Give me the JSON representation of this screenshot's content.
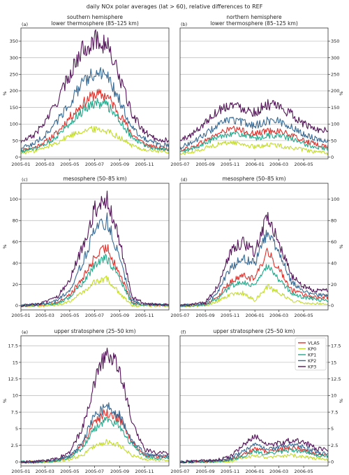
{
  "figure": {
    "suptitle": "daily NOx polar averages (lat > 60), relative differences to REF"
  },
  "series_styles": [
    {
      "name": "VLAS",
      "color": "#e0302b"
    },
    {
      "name": "KP0",
      "color": "#c4dc2c"
    },
    {
      "name": "KP1",
      "color": "#25a98c"
    },
    {
      "name": "KP2",
      "color": "#396a93"
    },
    {
      "name": "KP3",
      "color": "#541559"
    }
  ],
  "chart_data": [
    {
      "type": "line",
      "letter": "(a)",
      "title": [
        "southern hemisphere",
        "lower thermosphere (85–125 km)"
      ],
      "ylabel": "%",
      "xlim": [
        "2005-01-01",
        "2005-12-31"
      ],
      "ylim": [
        -5,
        390
      ],
      "yticks": [
        0,
        50,
        100,
        150,
        200,
        250,
        300,
        350
      ],
      "xticks": [
        "2005-01",
        "2005-03",
        "2005-05",
        "2005-07",
        "2005-09",
        "2005-11"
      ],
      "grid": true,
      "legend": false,
      "x": [
        "2005-01-01",
        "2005-02-01",
        "2005-03-01",
        "2005-04-01",
        "2005-05-01",
        "2005-06-01",
        "2005-07-01",
        "2005-08-01",
        "2005-09-01",
        "2005-10-01",
        "2005-11-01",
        "2005-12-01",
        "2005-12-31"
      ],
      "series": [
        {
          "name": "VLAS",
          "values": [
            20,
            28,
            45,
            75,
            120,
            160,
            190,
            185,
            130,
            70,
            40,
            28,
            25
          ]
        },
        {
          "name": "KP0",
          "values": [
            12,
            18,
            28,
            45,
            65,
            80,
            85,
            80,
            60,
            35,
            22,
            18,
            15
          ]
        },
        {
          "name": "KP1",
          "values": [
            18,
            25,
            38,
            65,
            105,
            140,
            165,
            160,
            112,
            60,
            35,
            25,
            22
          ]
        },
        {
          "name": "KP2",
          "values": [
            28,
            40,
            65,
            110,
            165,
            220,
            255,
            245,
            170,
            90,
            55,
            40,
            35
          ]
        },
        {
          "name": "KP3",
          "values": [
            45,
            65,
            105,
            170,
            250,
            325,
            355,
            340,
            240,
            130,
            75,
            55,
            50
          ]
        }
      ]
    },
    {
      "type": "line",
      "letter": "(b)",
      "title": [
        "northern hemisphere",
        "lower thermosphere (85–125 km)"
      ],
      "ylabel": "%",
      "xlim": [
        "2005-07-01",
        "2006-06-30"
      ],
      "ylim": [
        -5,
        390
      ],
      "yticks": [
        0,
        50,
        100,
        150,
        200,
        250,
        300,
        350
      ],
      "xticks": [
        "2005-07",
        "2005-09",
        "2005-11",
        "2006-01",
        "2006-03",
        "2006-05"
      ],
      "grid": true,
      "legend": false,
      "x": [
        "2005-07-01",
        "2005-08-01",
        "2005-09-01",
        "2005-10-01",
        "2005-11-01",
        "2005-12-01",
        "2006-01-01",
        "2006-02-01",
        "2006-03-01",
        "2006-04-01",
        "2006-05-01",
        "2006-06-01",
        "2006-06-30"
      ],
      "series": [
        {
          "name": "VLAS",
          "values": [
            22,
            30,
            50,
            70,
            85,
            80,
            70,
            80,
            80,
            65,
            50,
            38,
            32
          ]
        },
        {
          "name": "KP0",
          "values": [
            10,
            15,
            28,
            38,
            45,
            40,
            30,
            38,
            35,
            28,
            22,
            15,
            12
          ]
        },
        {
          "name": "KP1",
          "values": [
            15,
            25,
            42,
            60,
            72,
            68,
            55,
            65,
            65,
            55,
            40,
            30,
            25
          ]
        },
        {
          "name": "KP2",
          "values": [
            30,
            45,
            70,
            95,
            115,
            105,
            95,
            110,
            110,
            90,
            70,
            55,
            50
          ]
        },
        {
          "name": "KP3",
          "values": [
            50,
            70,
            105,
            140,
            160,
            150,
            135,
            160,
            150,
            130,
            100,
            85,
            80
          ]
        }
      ]
    },
    {
      "type": "line",
      "letter": "(c)",
      "title": [
        "mesosphere (50–85 km)"
      ],
      "ylabel": "%",
      "xlim": [
        "2005-01-01",
        "2005-12-31"
      ],
      "ylim": [
        -4,
        115
      ],
      "yticks": [
        0,
        20,
        40,
        60,
        80,
        100
      ],
      "xticks": [
        "2005-01",
        "2005-03",
        "2005-05",
        "2005-07",
        "2005-09",
        "2005-11"
      ],
      "grid": true,
      "legend": false,
      "x": [
        "2005-01-01",
        "2005-02-01",
        "2005-03-01",
        "2005-04-01",
        "2005-05-01",
        "2005-06-01",
        "2005-07-01",
        "2005-08-01",
        "2005-09-01",
        "2005-10-01",
        "2005-11-01",
        "2005-12-01",
        "2005-12-31"
      ],
      "series": [
        {
          "name": "VLAS",
          "values": [
            0,
            0.5,
            1,
            3,
            10,
            25,
            45,
            55,
            30,
            3,
            1,
            0.5,
            0.5
          ]
        },
        {
          "name": "KP0",
          "values": [
            0,
            0,
            0,
            1,
            4,
            12,
            22,
            25,
            12,
            0,
            0,
            0,
            0
          ]
        },
        {
          "name": "KP1",
          "values": [
            0,
            0.5,
            1,
            2,
            8,
            20,
            38,
            45,
            25,
            2,
            1,
            0.5,
            0.5
          ]
        },
        {
          "name": "KP2",
          "values": [
            0,
            1,
            2,
            5,
            15,
            40,
            70,
            80,
            45,
            5,
            1,
            1,
            1
          ]
        },
        {
          "name": "KP3",
          "values": [
            0,
            1,
            3,
            8,
            25,
            55,
            90,
            100,
            60,
            8,
            2,
            1,
            1
          ]
        }
      ]
    },
    {
      "type": "line",
      "letter": "(d)",
      "title": [
        "mesosphere (50–85 km)"
      ],
      "ylabel": "%",
      "xlim": [
        "2005-07-01",
        "2006-06-30"
      ],
      "ylim": [
        -4,
        115
      ],
      "yticks": [
        0,
        20,
        40,
        60,
        80,
        100
      ],
      "xticks": [
        "2005-07",
        "2005-09",
        "2005-11",
        "2006-01",
        "2006-03",
        "2006-05"
      ],
      "grid": true,
      "legend": false,
      "x": [
        "2005-07-01",
        "2005-08-01",
        "2005-09-01",
        "2005-10-01",
        "2005-11-01",
        "2005-12-01",
        "2006-01-01",
        "2006-02-01",
        "2006-03-01",
        "2006-04-01",
        "2006-05-01",
        "2006-06-01",
        "2006-06-30"
      ],
      "series": [
        {
          "name": "VLAS",
          "values": [
            0,
            0.5,
            1,
            8,
            22,
            28,
            25,
            50,
            35,
            15,
            10,
            8,
            8
          ]
        },
        {
          "name": "KP0",
          "values": [
            0,
            0,
            0,
            4,
            10,
            12,
            5,
            18,
            12,
            5,
            3,
            2,
            2
          ]
        },
        {
          "name": "KP1",
          "values": [
            0,
            0,
            1,
            6,
            18,
            22,
            18,
            38,
            25,
            12,
            8,
            6,
            5
          ]
        },
        {
          "name": "KP2",
          "values": [
            0,
            1,
            2,
            12,
            35,
            45,
            40,
            70,
            50,
            22,
            14,
            10,
            10
          ]
        },
        {
          "name": "KP3",
          "values": [
            0,
            1,
            3,
            18,
            50,
            60,
            50,
            85,
            60,
            28,
            18,
            14,
            14
          ]
        }
      ]
    },
    {
      "type": "line",
      "letter": "(e)",
      "title": [
        "upper stratosphere (25–50 km)"
      ],
      "ylabel": "%",
      "xlim": [
        "2005-01-01",
        "2005-12-31"
      ],
      "ylim": [
        -0.6,
        19
      ],
      "yticks": [
        0,
        2.5,
        5,
        7.5,
        10,
        12.5,
        15,
        17.5
      ],
      "xticks": [
        "2005-01",
        "2005-03",
        "2005-05",
        "2005-07",
        "2005-09",
        "2005-11"
      ],
      "grid": true,
      "legend": false,
      "x": [
        "2005-01-01",
        "2005-02-01",
        "2005-03-01",
        "2005-04-01",
        "2005-05-01",
        "2005-06-01",
        "2005-07-01",
        "2005-08-01",
        "2005-09-01",
        "2005-10-01",
        "2005-11-01",
        "2005-12-01",
        "2005-12-31"
      ],
      "series": [
        {
          "name": "VLAS",
          "values": [
            0,
            0,
            0.05,
            0.2,
            0.8,
            2.5,
            6,
            7.5,
            6.5,
            3,
            1,
            0.8,
            0.8
          ]
        },
        {
          "name": "KP0",
          "values": [
            0,
            0,
            0,
            0.1,
            0.4,
            1,
            2.5,
            3,
            2.5,
            1,
            0.4,
            0.3,
            0.3
          ]
        },
        {
          "name": "KP1",
          "values": [
            0,
            0,
            0.05,
            0.2,
            0.7,
            2,
            5,
            6.5,
            5.5,
            2.5,
            0.8,
            0.6,
            0.6
          ]
        },
        {
          "name": "KP2",
          "values": [
            0,
            0.02,
            0.1,
            0.3,
            0.9,
            2.8,
            7,
            8.5,
            7,
            3.2,
            1.2,
            0.9,
            0.9
          ]
        },
        {
          "name": "KP3",
          "values": [
            0,
            0.05,
            0.2,
            0.5,
            1.5,
            5,
            12,
            17,
            14,
            6,
            1.8,
            1.4,
            1.3
          ]
        }
      ]
    },
    {
      "type": "line",
      "letter": "(f)",
      "title": [
        "upper stratosphere (25–50 km)"
      ],
      "ylabel": "%",
      "xlim": [
        "2005-07-01",
        "2006-06-30"
      ],
      "ylim": [
        -0.6,
        19
      ],
      "yticks": [
        0,
        2.5,
        5,
        7.5,
        10,
        12.5,
        15,
        17.5
      ],
      "xticks": [
        "2005-07",
        "2005-09",
        "2005-11",
        "2006-01",
        "2006-03",
        "2006-05"
      ],
      "grid": true,
      "legend": true,
      "legend_position": "top-right",
      "x": [
        "2005-07-01",
        "2005-08-01",
        "2005-09-01",
        "2005-10-01",
        "2005-11-01",
        "2005-12-01",
        "2006-01-01",
        "2006-02-01",
        "2006-03-01",
        "2006-04-01",
        "2006-05-01",
        "2006-06-01",
        "2006-06-30"
      ],
      "series": [
        {
          "name": "VLAS",
          "values": [
            0,
            0,
            0.05,
            0.1,
            0.3,
            1,
            2,
            1.5,
            1.8,
            2.2,
            1.8,
            1.2,
            1
          ]
        },
        {
          "name": "KP0",
          "values": [
            0,
            0,
            0,
            0.05,
            0.1,
            0.5,
            1,
            0.6,
            0.8,
            1,
            0.8,
            0.5,
            0.4
          ]
        },
        {
          "name": "KP1",
          "values": [
            0,
            0,
            0.05,
            0.1,
            0.3,
            0.8,
            1.6,
            1.2,
            1.5,
            1.8,
            1.5,
            1,
            0.8
          ]
        },
        {
          "name": "KP2",
          "values": [
            0,
            0.05,
            0.1,
            0.2,
            0.5,
            1.5,
            2.5,
            2,
            2.2,
            2.6,
            2.2,
            1.5,
            1.3
          ]
        },
        {
          "name": "KP3",
          "values": [
            0,
            0.1,
            0.2,
            0.3,
            0.8,
            2.5,
            4,
            2.5,
            2.8,
            3.3,
            3,
            2,
            1.8
          ]
        }
      ]
    }
  ]
}
